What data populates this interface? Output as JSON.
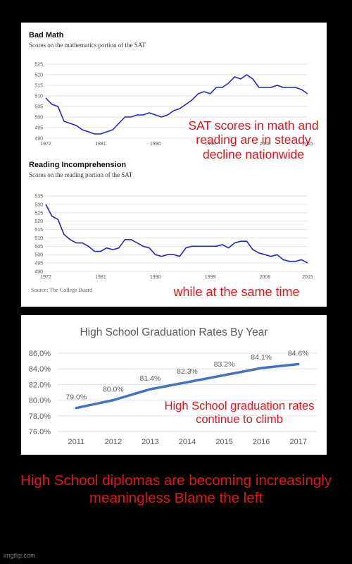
{
  "sat_panel": {
    "source": "Source: The College Board"
  },
  "chart_data": [
    {
      "type": "line",
      "title": "Bad Math",
      "subtitle": "Scores on the mathematics portion of the SAT",
      "x_tick_labels": [
        "1972",
        "1981",
        "1990",
        "1999",
        "2008",
        "2015"
      ],
      "y_ticks": [
        490,
        495,
        500,
        505,
        510,
        515,
        520,
        525
      ],
      "ylim": [
        490,
        525
      ],
      "xlim": [
        1972,
        2015
      ],
      "grid": true,
      "series": [
        {
          "color": "#2424c8",
          "x": [
            1972,
            1973,
            1974,
            1975,
            1976,
            1977,
            1978,
            1979,
            1980,
            1981,
            1982,
            1983,
            1984,
            1985,
            1986,
            1987,
            1988,
            1989,
            1990,
            1991,
            1992,
            1993,
            1994,
            1995,
            1996,
            1997,
            1998,
            1999,
            2000,
            2001,
            2002,
            2003,
            2004,
            2005,
            2006,
            2007,
            2008,
            2009,
            2010,
            2011,
            2012,
            2013,
            2014,
            2015
          ],
          "y": [
            509,
            506,
            505,
            498,
            497,
            496,
            494,
            493,
            492,
            492,
            493,
            494,
            497,
            500,
            500,
            501,
            501,
            502,
            501,
            500,
            501,
            503,
            504,
            506,
            508,
            511,
            512,
            511,
            514,
            514,
            516,
            519,
            518,
            520,
            518,
            514,
            514,
            514,
            515,
            514,
            514,
            514,
            513,
            511
          ]
        }
      ]
    },
    {
      "type": "line",
      "title": "Reading Incomprehension",
      "subtitle": "Scores on the reading portion of the SAT",
      "x_tick_labels": [
        "1972",
        "1981",
        "1990",
        "1999",
        "2008",
        "2015"
      ],
      "y_ticks": [
        490,
        495,
        500,
        505,
        510,
        515,
        520,
        525,
        530,
        535
      ],
      "ylim": [
        490,
        535
      ],
      "xlim": [
        1972,
        2015
      ],
      "grid": true,
      "series": [
        {
          "color": "#2424c8",
          "x": [
            1972,
            1973,
            1974,
            1975,
            1976,
            1977,
            1978,
            1979,
            1980,
            1981,
            1982,
            1983,
            1984,
            1985,
            1986,
            1987,
            1988,
            1989,
            1990,
            1991,
            1992,
            1993,
            1994,
            1995,
            1996,
            1997,
            1998,
            1999,
            2000,
            2001,
            2002,
            2003,
            2004,
            2005,
            2006,
            2007,
            2008,
            2009,
            2010,
            2011,
            2012,
            2013,
            2014,
            2015
          ],
          "y": [
            530,
            523,
            521,
            512,
            509,
            507,
            507,
            505,
            502,
            502,
            504,
            503,
            504,
            509,
            509,
            507,
            505,
            504,
            500,
            499,
            500,
            500,
            499,
            504,
            505,
            505,
            505,
            505,
            505,
            506,
            504,
            507,
            508,
            508,
            503,
            501,
            500,
            499,
            500,
            497,
            496,
            496,
            497,
            495
          ]
        }
      ]
    },
    {
      "type": "line",
      "title": "High School Graduation Rates By Year",
      "categories": [
        "2011",
        "2012",
        "2013",
        "2014",
        "2015",
        "2016",
        "2017"
      ],
      "y_tick_labels": [
        "76.0%",
        "78.0%",
        "80.0%",
        "82.0%",
        "84.0%",
        "86.0%"
      ],
      "ylim": [
        76,
        86
      ],
      "grid": true,
      "series": [
        {
          "color": "#4472c4",
          "values": [
            79.0,
            80.0,
            81.4,
            82.3,
            83.2,
            84.1,
            84.6
          ],
          "labels": [
            "79.0%",
            "80.0%",
            "81.4%",
            "82.3%",
            "83.2%",
            "84.1%",
            "84.6%"
          ]
        }
      ]
    }
  ],
  "overlays": {
    "sat_claim": "SAT scores in math and reading are in steady decline nationwide",
    "while_text": "while at the same time",
    "grad_claim": "High School graduation rates continue to climb",
    "bottom_caption": "High School diplomas are becoming increasingly meaningless  Blame the left"
  },
  "watermark": "imgflip.com"
}
